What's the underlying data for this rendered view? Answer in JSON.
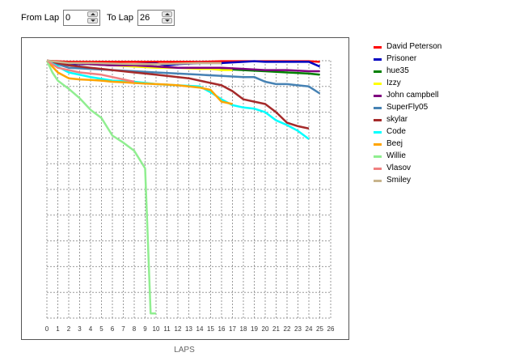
{
  "controls": {
    "from_label": "From Lap",
    "from_value": "0",
    "to_label": "To Lap",
    "to_value": "26"
  },
  "chart_data": {
    "type": "line",
    "title": "",
    "xlabel": "LAPS",
    "ylabel": "",
    "xlim": [
      0,
      26
    ],
    "ylim": [
      0,
      11
    ],
    "y_inverted": true,
    "grid": true,
    "legend_position": "right",
    "x_ticks": [
      0,
      1,
      2,
      3,
      4,
      5,
      6,
      7,
      8,
      9,
      10,
      11,
      12,
      13,
      14,
      15,
      16,
      17,
      18,
      19,
      20,
      21,
      22,
      23,
      24,
      25,
      26
    ],
    "series": [
      {
        "name": "David Peterson",
        "color": "#ff0000",
        "x": [
          0,
          2,
          4,
          6,
          8,
          10,
          12,
          14,
          16,
          18,
          20,
          22,
          24,
          25
        ],
        "y": [
          0,
          0.05,
          0.05,
          0.05,
          0.05,
          0.05,
          0.05,
          0.05,
          0.02,
          0.02,
          0.02,
          0.02,
          0.02,
          0.05
        ]
      },
      {
        "name": "Prisoner",
        "color": "#0000c0",
        "x": [
          0,
          2,
          4,
          6,
          8,
          10,
          11,
          12,
          14,
          16,
          18,
          19,
          20,
          22,
          24,
          25
        ],
        "y": [
          0,
          0.15,
          0.15,
          0.15,
          0.15,
          0.12,
          0.2,
          0.15,
          0.1,
          0.1,
          0.05,
          0.02,
          0.05,
          0.05,
          0.05,
          0.25
        ]
      },
      {
        "name": "hue35",
        "color": "#008000",
        "x": [
          0,
          2,
          4,
          6,
          8,
          10,
          12,
          14,
          16,
          18,
          20,
          22,
          24,
          25
        ],
        "y": [
          0,
          0.1,
          0.15,
          0.2,
          0.2,
          0.25,
          0.3,
          0.3,
          0.35,
          0.4,
          0.45,
          0.5,
          0.55,
          0.6
        ]
      },
      {
        "name": "Izzy",
        "color": "#ffff00",
        "x": [
          0,
          2,
          4,
          6,
          8,
          10,
          12,
          14,
          15,
          16,
          17
        ],
        "y": [
          0,
          0.1,
          0.15,
          0.2,
          0.25,
          0.3,
          0.3,
          0.35,
          0.35,
          0.4,
          0.4
        ]
      },
      {
        "name": "John campbell",
        "color": "#800080",
        "x": [
          0,
          2,
          4,
          6,
          8,
          10,
          12,
          14,
          16,
          18,
          20,
          22,
          24,
          25
        ],
        "y": [
          0,
          0.1,
          0.15,
          0.2,
          0.2,
          0.25,
          0.3,
          0.3,
          0.3,
          0.35,
          0.4,
          0.4,
          0.45,
          0.45
        ]
      },
      {
        "name": "SuperFly05",
        "color": "#4682b4",
        "x": [
          0,
          2,
          4,
          6,
          8,
          10,
          12,
          14,
          16,
          18,
          19,
          20,
          21,
          22,
          23,
          24,
          25
        ],
        "y": [
          0,
          0.3,
          0.35,
          0.4,
          0.45,
          0.5,
          0.55,
          0.6,
          0.65,
          0.7,
          0.7,
          0.9,
          1.0,
          1.0,
          1.05,
          1.1,
          1.4
        ]
      },
      {
        "name": "skylar",
        "color": "#a52a2a",
        "x": [
          0,
          2,
          4,
          6,
          8,
          10,
          12,
          13,
          14,
          15,
          16,
          17,
          18,
          19,
          20,
          21,
          22,
          23,
          24
        ],
        "y": [
          0,
          0.2,
          0.3,
          0.4,
          0.5,
          0.6,
          0.7,
          0.75,
          0.85,
          0.95,
          1.05,
          1.3,
          1.65,
          1.75,
          1.85,
          2.2,
          2.65,
          2.8,
          2.9
        ]
      },
      {
        "name": "Code",
        "color": "#00ffff",
        "x": [
          0,
          2,
          4,
          6,
          8,
          10,
          12,
          14,
          15,
          16,
          17,
          18,
          19,
          20,
          21,
          22,
          23,
          24
        ],
        "y": [
          0,
          0.5,
          0.7,
          0.85,
          0.9,
          1.0,
          1.05,
          1.1,
          1.35,
          1.65,
          1.9,
          2.0,
          2.05,
          2.2,
          2.55,
          2.75,
          3.0,
          3.35
        ]
      },
      {
        "name": "Beej",
        "color": "#ffa500",
        "x": [
          0,
          1,
          2,
          3,
          4,
          5,
          6,
          7,
          8,
          9,
          10,
          11,
          12,
          13,
          14,
          15,
          16,
          17
        ],
        "y": [
          0,
          0.5,
          0.75,
          0.8,
          0.82,
          0.85,
          0.9,
          0.92,
          0.95,
          0.98,
          1.0,
          1.02,
          1.05,
          1.1,
          1.15,
          1.25,
          1.75,
          1.85
        ]
      },
      {
        "name": "Willie",
        "color": "#90ee90",
        "x": [
          0,
          0.5,
          1,
          2,
          3,
          4,
          5,
          6,
          7,
          8,
          9,
          9.5,
          10
        ],
        "y": [
          0,
          0.5,
          0.85,
          1.2,
          1.6,
          2.1,
          2.45,
          3.2,
          3.5,
          3.85,
          4.6,
          10.8,
          10.8
        ]
      },
      {
        "name": "Vlasov",
        "color": "#f08080",
        "x": [
          0,
          1,
          2,
          3,
          4,
          5,
          6,
          7,
          8
        ],
        "y": [
          0,
          0.3,
          0.4,
          0.5,
          0.55,
          0.6,
          0.7,
          0.8,
          0.9
        ]
      },
      {
        "name": "Smiley",
        "color": "#c8b48c",
        "x": [
          0,
          2,
          4,
          6,
          8,
          10,
          12,
          14,
          16
        ],
        "y": [
          0,
          0.1,
          0.1,
          0.12,
          0.15,
          0.15,
          0.12,
          0.1,
          0.1
        ]
      }
    ]
  }
}
